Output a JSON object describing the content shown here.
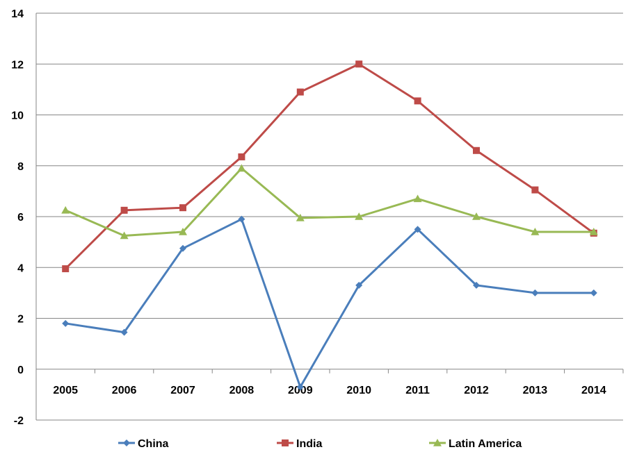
{
  "chart_data": {
    "type": "line",
    "categories": [
      "2005",
      "2006",
      "2007",
      "2008",
      "2009",
      "2010",
      "2011",
      "2012",
      "2013",
      "2014"
    ],
    "series": [
      {
        "name": "China",
        "values": [
          1.8,
          1.45,
          4.75,
          5.9,
          -0.7,
          3.3,
          5.5,
          3.3,
          3.0,
          3.0
        ],
        "color": "#4A7EBB",
        "marker": "diamond"
      },
      {
        "name": "India",
        "values": [
          3.95,
          6.25,
          6.35,
          8.35,
          10.9,
          12.0,
          10.55,
          8.6,
          7.05,
          5.35
        ],
        "color": "#BE4B48",
        "marker": "square"
      },
      {
        "name": "Latin America",
        "values": [
          6.25,
          5.25,
          5.4,
          7.9,
          5.95,
          6.0,
          6.7,
          6.0,
          5.4,
          5.4
        ],
        "color": "#98B954",
        "marker": "triangle"
      }
    ],
    "ylim": [
      -2,
      14
    ],
    "yticks": [
      "-2",
      "0",
      "2",
      "4",
      "6",
      "8",
      "10",
      "12",
      "14"
    ],
    "grid": true,
    "legend": "bottom",
    "title": "",
    "xlabel": "",
    "ylabel": ""
  }
}
